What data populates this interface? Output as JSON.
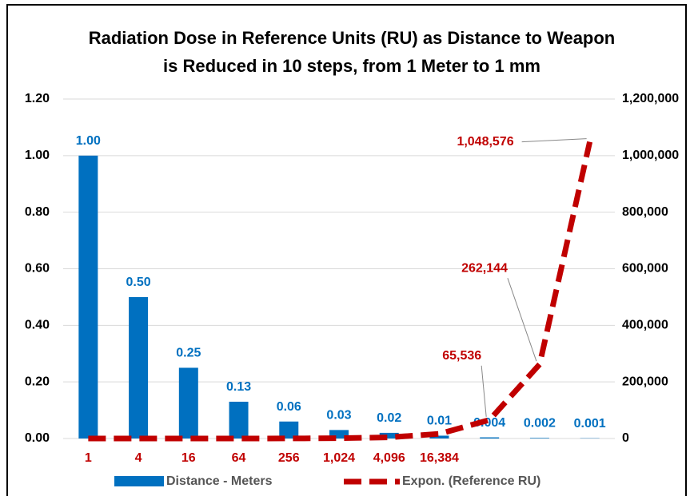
{
  "chart_data": {
    "type": "bar",
    "title": "Radiation Dose in Reference Units (RU) as Distance to Weapon is Reduced in 10 steps, from 1 Meter to 1 mm",
    "categories": [
      "1",
      "4",
      "16",
      "64",
      "256",
      "1,024",
      "4,096",
      "16,384",
      null,
      null,
      null
    ],
    "series": [
      {
        "name": "Distance - Meters",
        "color": "#0070c0",
        "type": "bar",
        "values": [
          1,
          0.5,
          0.25,
          0.13,
          0.06,
          0.03,
          0.02,
          0.01,
          0.004,
          0.002,
          0.001
        ],
        "value_labels": [
          "1.00",
          "0.50",
          "0.25",
          "0.13",
          "0.06",
          "0.03",
          "0.02",
          "0.01",
          "0.004",
          "0.002",
          "0.001"
        ]
      },
      {
        "name": "Expon. (Reference RU)",
        "color": "#c00000",
        "type": "line",
        "axis": "y2",
        "values": [
          1,
          4,
          16,
          64,
          256,
          1024,
          4096,
          16384,
          65536,
          262144,
          1048576
        ],
        "value_labels": [
          null,
          null,
          null,
          null,
          null,
          null,
          null,
          null,
          "65,536",
          "262,144",
          "1,048,576"
        ]
      }
    ],
    "ylim": [
      0,
      1.2
    ],
    "yticks": [
      {
        "value": 0,
        "label": "0.00"
      },
      {
        "value": 0.2,
        "label": "0.20"
      },
      {
        "value": 0.4,
        "label": "0.40"
      },
      {
        "value": 0.6,
        "label": "0.60"
      },
      {
        "value": 0.8,
        "label": "0.80"
      },
      {
        "value": 1,
        "label": "1.00"
      },
      {
        "value": 1.2,
        "label": "1.20"
      }
    ],
    "y2lim": [
      0,
      1200000
    ],
    "y2ticks": [
      0,
      {
        "value": 200000,
        "label": "200,000"
      },
      {
        "value": 400000,
        "label": "400,000"
      },
      {
        "value": 600000,
        "label": "600,000"
      },
      {
        "value": 800000,
        "label": "800,000"
      },
      {
        "value": 1000000,
        "label": "1,000,000"
      },
      {
        "value": 1200000,
        "label": "1,200,000"
      }
    ],
    "grid": true,
    "legend": "bottom"
  }
}
